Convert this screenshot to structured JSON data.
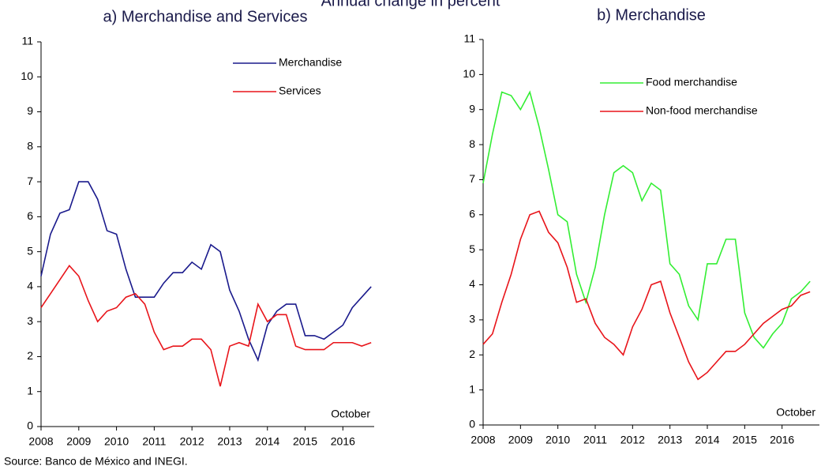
{
  "title": "Annual change in percent",
  "source": "Source: Banco de México and INEGI.",
  "chart_data": [
    {
      "type": "line",
      "title": "a) Merchandise and Services",
      "annotation": "October",
      "x": [
        2008,
        2008.25,
        2008.5,
        2008.75,
        2009,
        2009.25,
        2009.5,
        2009.75,
        2010,
        2010.25,
        2010.5,
        2010.75,
        2011,
        2011.25,
        2011.5,
        2011.75,
        2012,
        2012.25,
        2012.5,
        2012.75,
        2013,
        2013.25,
        2013.5,
        2013.75,
        2014,
        2014.25,
        2014.5,
        2014.75,
        2015,
        2015.25,
        2015.5,
        2015.75,
        2016,
        2016.25,
        2016.5,
        2016.75
      ],
      "xlim": [
        2008,
        2016.83
      ],
      "xticks": [
        2008,
        2009,
        2010,
        2011,
        2012,
        2013,
        2014,
        2015,
        2016
      ],
      "ylim": [
        0,
        11
      ],
      "yticks": [
        0,
        1,
        2,
        3,
        4,
        5,
        6,
        7,
        8,
        9,
        10,
        11
      ],
      "legend": "upper right",
      "series": [
        {
          "name": "Merchandise",
          "color": "#1a1a8c",
          "values": [
            4.3,
            5.5,
            6.1,
            6.2,
            7.0,
            7.0,
            6.5,
            5.6,
            5.5,
            4.5,
            3.7,
            3.7,
            3.7,
            4.1,
            4.4,
            4.4,
            4.7,
            4.5,
            5.2,
            5.0,
            3.9,
            3.3,
            2.5,
            1.9,
            2.9,
            3.3,
            3.5,
            3.5,
            2.6,
            2.6,
            2.5,
            2.7,
            2.9,
            3.4,
            3.7,
            4.0
          ]
        },
        {
          "name": "Services",
          "color": "#e8141a",
          "values": [
            3.4,
            3.8,
            4.2,
            4.6,
            4.3,
            3.6,
            3.0,
            3.3,
            3.4,
            3.7,
            3.8,
            3.5,
            2.7,
            2.2,
            2.3,
            2.3,
            2.5,
            2.5,
            2.2,
            1.15,
            2.3,
            2.4,
            2.3,
            3.5,
            3.0,
            3.2,
            3.2,
            2.3,
            2.2,
            2.2,
            2.2,
            2.4,
            2.4,
            2.4,
            2.3,
            2.4
          ]
        }
      ]
    },
    {
      "type": "line",
      "title": "b) Merchandise",
      "annotation": "October",
      "x": [
        2008,
        2008.25,
        2008.5,
        2008.75,
        2009,
        2009.25,
        2009.5,
        2009.75,
        2010,
        2010.25,
        2010.5,
        2010.75,
        2011,
        2011.25,
        2011.5,
        2011.75,
        2012,
        2012.25,
        2012.5,
        2012.75,
        2013,
        2013.25,
        2013.5,
        2013.75,
        2014,
        2014.25,
        2014.5,
        2014.75,
        2015,
        2015.25,
        2015.5,
        2015.75,
        2016,
        2016.25,
        2016.5,
        2016.75
      ],
      "xlim": [
        2008,
        2017
      ],
      "xticks": [
        2008,
        2009,
        2010,
        2011,
        2012,
        2013,
        2014,
        2015,
        2016
      ],
      "ylim": [
        0,
        11
      ],
      "yticks": [
        0,
        1,
        2,
        3,
        4,
        5,
        6,
        7,
        8,
        9,
        10,
        11
      ],
      "legend": "upper right",
      "series": [
        {
          "name": "Food merchandise",
          "color": "#33ee33",
          "values": [
            6.9,
            8.3,
            9.5,
            9.4,
            9.0,
            9.5,
            8.5,
            7.3,
            6.0,
            5.8,
            4.3,
            3.5,
            4.5,
            6.0,
            7.2,
            7.4,
            7.2,
            6.4,
            6.9,
            6.7,
            4.6,
            4.3,
            3.4,
            3.0,
            4.6,
            4.6,
            5.3,
            5.3,
            3.2,
            2.5,
            2.2,
            2.6,
            2.9,
            3.6,
            3.8,
            4.1
          ]
        },
        {
          "name": "Non-food merchandise",
          "color": "#e8141a",
          "values": [
            2.3,
            2.6,
            3.5,
            4.3,
            5.3,
            6.0,
            6.1,
            5.5,
            5.2,
            4.5,
            3.5,
            3.6,
            2.9,
            2.5,
            2.3,
            2.0,
            2.8,
            3.3,
            4.0,
            4.1,
            3.2,
            2.5,
            1.8,
            1.3,
            1.5,
            1.8,
            2.1,
            2.1,
            2.3,
            2.6,
            2.9,
            3.1,
            3.3,
            3.4,
            3.7,
            3.8
          ]
        }
      ]
    }
  ]
}
